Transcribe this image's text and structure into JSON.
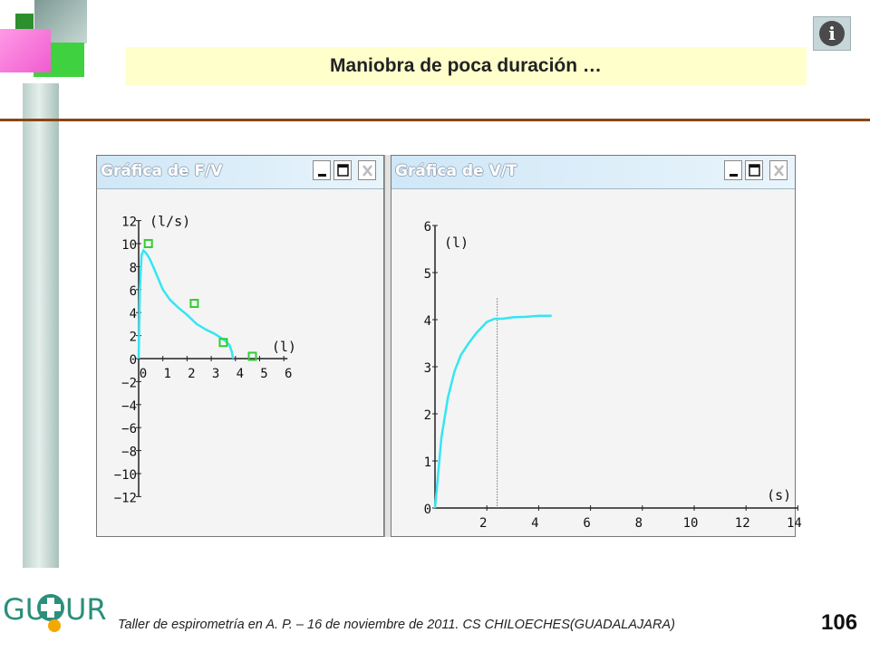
{
  "slide": {
    "title": "Maniobra de poca duración …",
    "footer": "Taller de espirometría en A. P. – 16 de noviembre de 2011. CS CHILOECHES(GUADALAJARA)",
    "page_number": "106",
    "info_icon": "info-icon",
    "info_symbol": "i"
  },
  "logo": {
    "left": "GU",
    "right": "UR"
  },
  "windows": [
    {
      "title": "Gráfica de F/V",
      "buttons": [
        "minimize",
        "maximize",
        "close"
      ],
      "ylabel": "(l/s)",
      "xlabel": "(l)"
    },
    {
      "title": "Gráfica de V/T",
      "buttons": [
        "minimize",
        "maximize",
        "close"
      ],
      "ylabel": "(l)",
      "xlabel": "(s)"
    }
  ],
  "chart_data": [
    {
      "type": "line",
      "title": "Gráfica de F/V",
      "xlabel": "(l)",
      "ylabel": "(l/s)",
      "xlim": [
        0,
        6
      ],
      "ylim": [
        -12,
        12
      ],
      "xticks": [
        0,
        1,
        2,
        3,
        4,
        5,
        6
      ],
      "yticks": [
        12,
        10,
        8,
        6,
        4,
        2,
        0,
        -2,
        -4,
        -6,
        -8,
        -10,
        -12
      ],
      "series": [
        {
          "color": "#33e6f2",
          "x": [
            0,
            0.05,
            0.12,
            0.2,
            0.3,
            0.45,
            0.6,
            0.8,
            1.0,
            1.3,
            1.6,
            2.0,
            2.4,
            2.8,
            3.1,
            3.4,
            3.6,
            3.75,
            3.85,
            3.9
          ],
          "y": [
            0,
            6,
            9.0,
            9.4,
            9.2,
            8.7,
            8.0,
            7.0,
            6.0,
            5.1,
            4.5,
            3.8,
            3.0,
            2.5,
            2.2,
            1.8,
            1.5,
            1.2,
            0.6,
            0
          ]
        }
      ],
      "markers": {
        "color": "#33cc33",
        "points": [
          [
            0.4,
            10.0
          ],
          [
            2.3,
            4.8
          ],
          [
            3.5,
            1.4
          ],
          [
            4.7,
            0.2
          ]
        ]
      }
    },
    {
      "type": "line",
      "title": "Gráfica de V/T",
      "xlabel": "(s)",
      "ylabel": "(l)",
      "xlim": [
        0,
        14
      ],
      "ylim": [
        0,
        6
      ],
      "xticks": [
        2,
        4,
        6,
        8,
        10,
        12,
        14
      ],
      "yticks": [
        0,
        1,
        2,
        3,
        4,
        5,
        6
      ],
      "series": [
        {
          "color": "#33e6f2",
          "x": [
            0,
            0.1,
            0.25,
            0.5,
            0.75,
            1.0,
            1.3,
            1.6,
            2.0,
            2.3,
            2.6,
            3.0,
            3.5,
            4.0,
            4.5
          ],
          "y": [
            0,
            0.6,
            1.5,
            2.35,
            2.9,
            3.25,
            3.5,
            3.72,
            3.95,
            4.02,
            4.02,
            4.05,
            4.06,
            4.08,
            4.08
          ]
        }
      ],
      "marker_line_x": 2.4
    }
  ]
}
